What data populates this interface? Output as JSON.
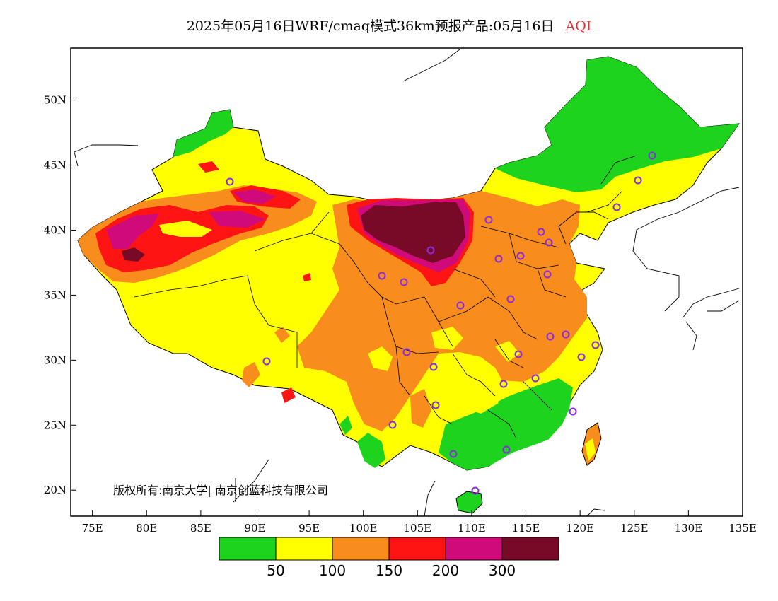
{
  "title": {
    "text": "2025年05月16日WRF/cmaq模式36km预报产品:05月16日",
    "variable": "AQI"
  },
  "copyright": "版权所有:南京大学| 南京创蓝科技有限公司",
  "axes": {
    "lat_ticks": [
      "50N",
      "45N",
      "40N",
      "35N",
      "30N",
      "25N",
      "20N"
    ],
    "lon_ticks": [
      "75E",
      "80E",
      "85E",
      "90E",
      "95E",
      "100E",
      "105E",
      "110E",
      "115E",
      "120E",
      "125E",
      "130E",
      "135E"
    ]
  },
  "legend": {
    "colors": [
      "#1ed31e",
      "#ffff00",
      "#f88c1c",
      "#ff1414",
      "#d00a78",
      "#780a28"
    ],
    "labels": [
      "50",
      "100",
      "150",
      "200",
      "300"
    ]
  },
  "map": {
    "lon_range": [
      73,
      135
    ],
    "lat_range": [
      18,
      54
    ],
    "categories": [
      "0-50",
      "50-100",
      "100-150",
      "150-200",
      "200-300",
      ">300"
    ],
    "city_marker_color": "#8a2be2"
  }
}
